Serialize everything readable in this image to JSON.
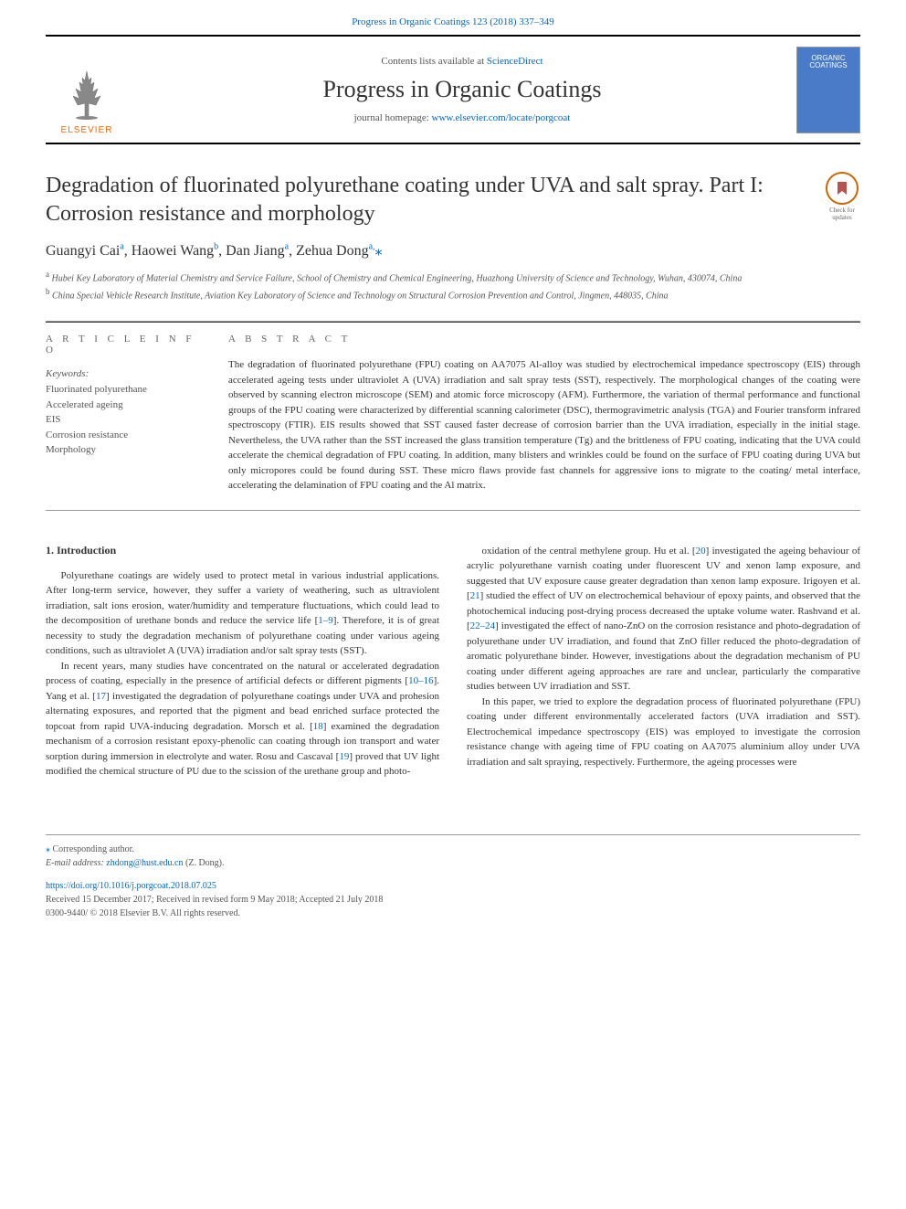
{
  "header": {
    "citation": "Progress in Organic Coatings 123 (2018) 337–349",
    "contents_prefix": "Contents lists available at ",
    "contents_link": "ScienceDirect",
    "journal_name": "Progress in Organic Coatings",
    "homepage_prefix": "journal homepage: ",
    "homepage_url": "www.elsevier.com/locate/porgcoat",
    "elsevier_label": "ELSEVIER",
    "cover_line1": "ORGANIC",
    "cover_line2": "COATINGS"
  },
  "article": {
    "title": "Degradation of fluorinated polyurethane coating under UVA and salt spray. Part I: Corrosion resistance and morphology",
    "check_updates": "Check for updates",
    "authors_html": "Guangyi Cai<sup>a</sup>, Haowei Wang<sup>b</sup>, Dan Jiang<sup>a</sup>, Zehua Dong<sup>a,</sup><span class='corr'>⁎</span>",
    "affiliations": [
      "a Hubei Key Laboratory of Material Chemistry and Service Failure, School of Chemistry and Chemical Engineering, Huazhong University of Science and Technology, Wuhan, 430074, China",
      "b China Special Vehicle Research Institute, Aviation Key Laboratory of Science and Technology on Structural Corrosion Prevention and Control, Jingmen, 448035, China"
    ]
  },
  "info": {
    "heading": "A R T I C L E  I N F O",
    "keywords_label": "Keywords:",
    "keywords": [
      "Fluorinated polyurethane",
      "Accelerated ageing",
      "EIS",
      "Corrosion resistance",
      "Morphology"
    ]
  },
  "abstract": {
    "heading": "A B S T R A C T",
    "text": "The degradation of fluorinated polyurethane (FPU) coating on AA7075 Al-alloy was studied by electrochemical impedance spectroscopy (EIS) through accelerated ageing tests under ultraviolet A (UVA) irradiation and salt spray tests (SST), respectively. The morphological changes of the coating were observed by scanning electron microscope (SEM) and atomic force microscopy (AFM). Furthermore, the variation of thermal performance and functional groups of the FPU coating were characterized by differential scanning calorimeter (DSC), thermogravimetric analysis (TGA) and Fourier transform infrared spectroscopy (FTIR). EIS results showed that SST caused faster decrease of corrosion barrier than the UVA irradiation, especially in the initial stage. Nevertheless, the UVA rather than the SST increased the glass transition temperature (Tg) and the brittleness of FPU coating, indicating that the UVA could accelerate the chemical degradation of FPU coating. In addition, many blisters and wrinkles could be found on the surface of FPU coating during UVA but only micropores could be found during SST. These micro flaws provide fast channels for aggressive ions to migrate to the coating/ metal interface, accelerating the delamination of FPU coating and the Al matrix."
  },
  "intro": {
    "heading": "1. Introduction",
    "col1": [
      "Polyurethane coatings are widely used to protect metal in various industrial applications. After long-term service, however, they suffer a variety of weathering, such as ultraviolent irradiation, salt ions erosion, water/humidity and temperature fluctuations, which could lead to the decomposition of urethane bonds and reduce the service life [<span class='ref'>1–9</span>]. Therefore, it is of great necessity to study the degradation mechanism of polyurethane coating under various ageing conditions, such as ultraviolet A (UVA) irradiation and/or salt spray tests (SST).",
      "In recent years, many studies have concentrated on the natural or accelerated degradation process of coating, especially in the presence of artificial defects or different pigments [<span class='ref'>10–16</span>]. Yang et al. [<span class='ref'>17</span>] investigated the degradation of polyurethane coatings under UVA and prohesion alternating exposures, and reported that the pigment and bead enriched surface protected the topcoat from rapid UVA-inducing degradation. Morsch et al. [<span class='ref'>18</span>] examined the degradation mechanism of a corrosion resistant epoxy-phenolic can coating through ion transport and water sorption during immersion in electrolyte and water. Rosu and Cascaval [<span class='ref'>19</span>] proved that UV light modified the chemical structure of PU due to the scission of the urethane group and photo-"
    ],
    "col2": [
      "oxidation of the central methylene group. Hu et al. [<span class='ref'>20</span>] investigated the ageing behaviour of acrylic polyurethane varnish coating under fluorescent UV and xenon lamp exposure, and suggested that UV exposure cause greater degradation than xenon lamp exposure. Irigoyen et al. [<span class='ref'>21</span>] studied the effect of UV on electrochemical behaviour of epoxy paints, and observed that the photochemical inducing post-drying process decreased the uptake volume water. Rashvand et al. [<span class='ref'>22–24</span>] investigated the effect of nano-ZnO on the corrosion resistance and photo-degradation of polyurethane under UV irradiation, and found that ZnO filler reduced the photo-degradation of aromatic polyurethane binder. However, investigations about the degradation mechanism of PU coating under different ageing approaches are rare and unclear, particularly the comparative studies between UV irradiation and SST.",
      "In this paper, we tried to explore the degradation process of fluorinated polyurethane (FPU) coating under different environmentally accelerated factors (UVA irradiation and SST). Electrochemical impedance spectroscopy (EIS) was employed to investigate the corrosion resistance change with ageing time of FPU coating on AA7075 aluminium alloy under UVA irradiation and salt spraying, respectively. Furthermore, the ageing processes were"
    ]
  },
  "footer": {
    "corr_label": "⁎ Corresponding author.",
    "email_label": "E-mail address: ",
    "email": "zhdong@hust.edu.cn",
    "email_suffix": " (Z. Dong).",
    "doi": "https://doi.org/10.1016/j.porgcoat.2018.07.025",
    "received": "Received 15 December 2017; Received in revised form 9 May 2018; Accepted 21 July 2018",
    "issn": "0300-9440/ © 2018 Elsevier B.V. All rights reserved."
  },
  "colors": {
    "link": "#0066cc",
    "elsevier_orange": "#ff6600",
    "cover_blue": "#4a7bc8",
    "text": "#333333",
    "muted": "#555555",
    "rule": "#999999"
  }
}
